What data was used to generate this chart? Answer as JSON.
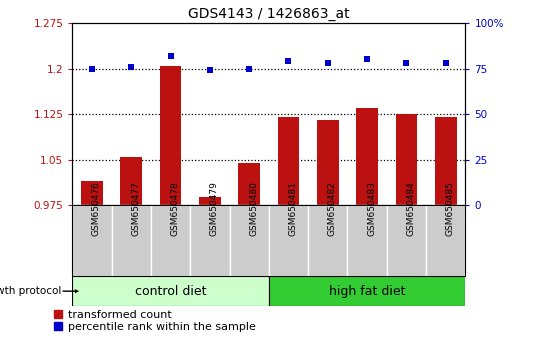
{
  "title": "GDS4143 / 1426863_at",
  "samples": [
    "GSM650476",
    "GSM650477",
    "GSM650478",
    "GSM650479",
    "GSM650480",
    "GSM650481",
    "GSM650482",
    "GSM650483",
    "GSM650484",
    "GSM650485"
  ],
  "transformed_count": [
    1.015,
    1.055,
    1.205,
    0.988,
    1.045,
    1.12,
    1.115,
    1.135,
    1.125,
    1.12
  ],
  "percentile_rank": [
    75,
    76,
    82,
    74,
    75,
    79,
    78,
    80,
    78,
    78
  ],
  "ylim_left": [
    0.975,
    1.275
  ],
  "ylim_right": [
    0,
    100
  ],
  "yticks_left": [
    0.975,
    1.05,
    1.125,
    1.2,
    1.275
  ],
  "ytick_labels_left": [
    "0.975",
    "1.05",
    "1.125",
    "1.2",
    "1.275"
  ],
  "yticks_right": [
    0,
    25,
    50,
    75,
    100
  ],
  "ytick_labels_right": [
    "0",
    "25",
    "50",
    "75",
    "100%"
  ],
  "hlines": [
    1.05,
    1.125,
    1.2
  ],
  "bar_color": "#bb1111",
  "dot_color": "#0000cc",
  "control_diet_label": "control diet",
  "high_fat_label": "high fat diet",
  "growth_protocol_label": "growth protocol",
  "legend_bar_label": "transformed count",
  "legend_dot_label": "percentile rank within the sample",
  "control_color": "#ccffcc",
  "high_fat_color": "#33cc33",
  "tick_area_color": "#cccccc",
  "n_control": 5,
  "n_total": 10
}
